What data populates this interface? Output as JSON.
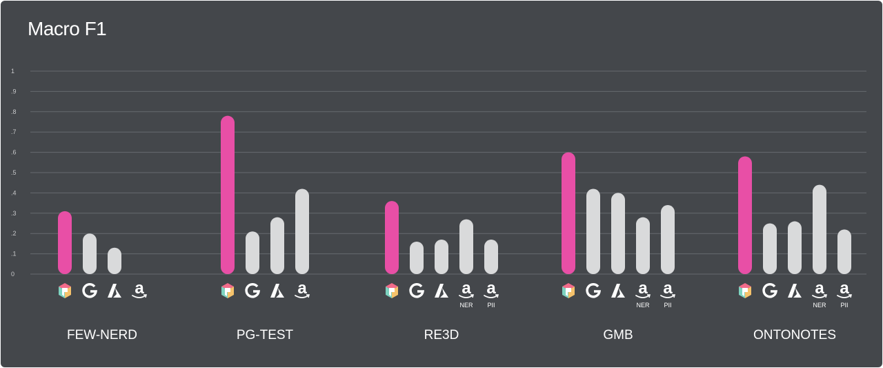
{
  "title": "Macro F1",
  "colors": {
    "background": "#44474b",
    "highlight": "#e84fa6",
    "bar": "#d9dadb",
    "grid": "#666a6f",
    "text": "#ffffff",
    "muted": "#c8c9cb"
  },
  "chart_data": {
    "type": "bar",
    "title": "Macro F1",
    "ylim": [
      0,
      1
    ],
    "yticks": [
      "0",
      ".1",
      ".2",
      ".3",
      ".4",
      ".5",
      ".6",
      ".7",
      ".8",
      ".9",
      "1"
    ],
    "grid": true,
    "groups": [
      {
        "name": "FEW-NERD",
        "bars": [
          {
            "icon": "logo-icon",
            "sublabel": "",
            "value": 0.31,
            "highlight": true
          },
          {
            "icon": "google-icon",
            "sublabel": "",
            "value": 0.2
          },
          {
            "icon": "azure-icon",
            "sublabel": "",
            "value": 0.13
          }
        ],
        "extra_icons": [
          {
            "icon": "amazon-icon",
            "sublabel": ""
          }
        ]
      },
      {
        "name": "PG-TEST",
        "bars": [
          {
            "icon": "logo-icon",
            "sublabel": "",
            "value": 0.78,
            "highlight": true
          },
          {
            "icon": "google-icon",
            "sublabel": "",
            "value": 0.21
          },
          {
            "icon": "azure-icon",
            "sublabel": "",
            "value": 0.28
          },
          {
            "icon": "amazon-icon",
            "sublabel": "",
            "value": 0.42
          }
        ],
        "extra_icons": []
      },
      {
        "name": "RE3D",
        "bars": [
          {
            "icon": "logo-icon",
            "sublabel": "",
            "value": 0.36,
            "highlight": true
          },
          {
            "icon": "google-icon",
            "sublabel": "",
            "value": 0.16
          },
          {
            "icon": "azure-icon",
            "sublabel": "",
            "value": 0.17
          },
          {
            "icon": "amazon-icon",
            "sublabel": "NER",
            "value": 0.27
          },
          {
            "icon": "amazon-icon",
            "sublabel": "PII",
            "value": 0.17
          }
        ],
        "extra_icons": []
      },
      {
        "name": "GMB",
        "bars": [
          {
            "icon": "logo-icon",
            "sublabel": "",
            "value": 0.6,
            "highlight": true
          },
          {
            "icon": "google-icon",
            "sublabel": "",
            "value": 0.42
          },
          {
            "icon": "azure-icon",
            "sublabel": "",
            "value": 0.4
          },
          {
            "icon": "amazon-icon",
            "sublabel": "NER",
            "value": 0.28
          },
          {
            "icon": "amazon-icon",
            "sublabel": "PII",
            "value": 0.34
          }
        ],
        "extra_icons": []
      },
      {
        "name": "ONTONOTES",
        "bars": [
          {
            "icon": "logo-icon",
            "sublabel": "",
            "value": 0.58,
            "highlight": true
          },
          {
            "icon": "google-icon",
            "sublabel": "",
            "value": 0.25
          },
          {
            "icon": "azure-icon",
            "sublabel": "",
            "value": 0.26
          },
          {
            "icon": "amazon-icon",
            "sublabel": "NER",
            "value": 0.44
          },
          {
            "icon": "amazon-icon",
            "sublabel": "PII",
            "value": 0.22
          }
        ],
        "extra_icons": []
      }
    ]
  }
}
